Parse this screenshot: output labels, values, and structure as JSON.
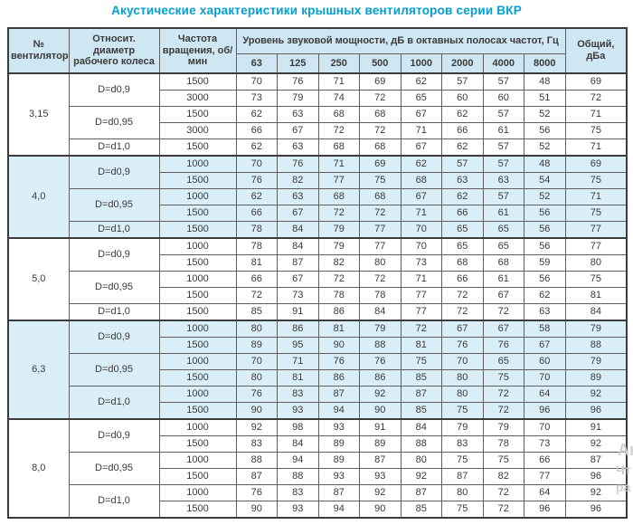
{
  "title": "Акустические характеристики крышных вентиляторов серии ВКР",
  "colors": {
    "title": "#00a0d4",
    "header_bg": "#cfe7f3",
    "highlight_bg": "#daeef8",
    "border_dark": "#3c3c3c",
    "border_inner": "#5f5f5f"
  },
  "watermark": {
    "fragments": [
      "Ак",
      "Чт",
      "ра"
    ]
  },
  "table": {
    "headers": {
      "fan": "№ вентилятора",
      "diameter": "Относит. диаметр рабочего колеса",
      "rpm": "Частота вращения, об/мин",
      "levels_group": "Уровень звуковой мощности, дБ в октавных полосах частот, Гц",
      "frequencies": [
        "63",
        "125",
        "250",
        "500",
        "1000",
        "2000",
        "4000",
        "8000"
      ],
      "total": "Общий, дБа"
    },
    "sections": [
      {
        "fan": "3,15",
        "highlight": false,
        "groups": [
          {
            "diameter": "D=d0,9",
            "rows": [
              {
                "rpm": "1500",
                "levels": [
                  70,
                  76,
                  71,
                  69,
                  62,
                  57,
                  57,
                  48
                ],
                "total": 69
              },
              {
                "rpm": "3000",
                "levels": [
                  73,
                  79,
                  74,
                  72,
                  65,
                  60,
                  60,
                  51
                ],
                "total": 72
              }
            ]
          },
          {
            "diameter": "D=d0,95",
            "rows": [
              {
                "rpm": "1500",
                "levels": [
                  62,
                  63,
                  68,
                  68,
                  67,
                  62,
                  57,
                  52
                ],
                "total": 71
              },
              {
                "rpm": "3000",
                "levels": [
                  66,
                  67,
                  72,
                  72,
                  71,
                  66,
                  61,
                  56
                ],
                "total": 75
              }
            ]
          },
          {
            "diameter": "D=d1,0",
            "rows": [
              {
                "rpm": "1500",
                "levels": [
                  62,
                  63,
                  68,
                  68,
                  67,
                  62,
                  57,
                  52
                ],
                "total": 71
              }
            ]
          }
        ]
      },
      {
        "fan": "4,0",
        "highlight": true,
        "groups": [
          {
            "diameter": "D=d0,9",
            "rows": [
              {
                "rpm": "1000",
                "levels": [
                  70,
                  76,
                  71,
                  69,
                  62,
                  57,
                  57,
                  48
                ],
                "total": 69
              },
              {
                "rpm": "1500",
                "levels": [
                  76,
                  82,
                  77,
                  75,
                  68,
                  63,
                  63,
                  54
                ],
                "total": 75
              }
            ]
          },
          {
            "diameter": "D=d0,95",
            "rows": [
              {
                "rpm": "1000",
                "levels": [
                  62,
                  63,
                  68,
                  68,
                  67,
                  62,
                  57,
                  52
                ],
                "total": 71
              },
              {
                "rpm": "1500",
                "levels": [
                  66,
                  67,
                  72,
                  72,
                  71,
                  66,
                  61,
                  56
                ],
                "total": 75
              }
            ]
          },
          {
            "diameter": "D=d1,0",
            "rows": [
              {
                "rpm": "1500",
                "levels": [
                  78,
                  84,
                  79,
                  77,
                  70,
                  65,
                  65,
                  56
                ],
                "total": 77
              }
            ]
          }
        ]
      },
      {
        "fan": "5,0",
        "highlight": false,
        "groups": [
          {
            "diameter": "D=d0,9",
            "rows": [
              {
                "rpm": "1000",
                "levels": [
                  78,
                  84,
                  79,
                  77,
                  70,
                  65,
                  65,
                  56
                ],
                "total": 77
              },
              {
                "rpm": "1500",
                "levels": [
                  81,
                  87,
                  82,
                  80,
                  73,
                  68,
                  68,
                  59
                ],
                "total": 80
              }
            ]
          },
          {
            "diameter": "D=d0,95",
            "rows": [
              {
                "rpm": "1000",
                "levels": [
                  66,
                  67,
                  72,
                  72,
                  71,
                  66,
                  61,
                  56
                ],
                "total": 75
              },
              {
                "rpm": "1500",
                "levels": [
                  72,
                  73,
                  78,
                  78,
                  77,
                  72,
                  67,
                  62
                ],
                "total": 81
              }
            ]
          },
          {
            "diameter": "D=d1,0",
            "rows": [
              {
                "rpm": "1500",
                "levels": [
                  85,
                  91,
                  86,
                  84,
                  77,
                  72,
                  72,
                  63
                ],
                "total": 84
              }
            ]
          }
        ]
      },
      {
        "fan": "6,3",
        "highlight": true,
        "groups": [
          {
            "diameter": "D=d0,9",
            "rows": [
              {
                "rpm": "1000",
                "levels": [
                  80,
                  86,
                  81,
                  79,
                  72,
                  67,
                  67,
                  58
                ],
                "total": 79
              },
              {
                "rpm": "1500",
                "levels": [
                  89,
                  95,
                  90,
                  88,
                  81,
                  76,
                  76,
                  67
                ],
                "total": 88
              }
            ]
          },
          {
            "diameter": "D=d0,95",
            "rows": [
              {
                "rpm": "1000",
                "levels": [
                  70,
                  71,
                  76,
                  76,
                  75,
                  70,
                  65,
                  60
                ],
                "total": 79
              },
              {
                "rpm": "1500",
                "levels": [
                  80,
                  81,
                  86,
                  86,
                  85,
                  80,
                  75,
                  70
                ],
                "total": 89
              }
            ]
          },
          {
            "diameter": "D=d1,0",
            "rows": [
              {
                "rpm": "1000",
                "levels": [
                  76,
                  83,
                  87,
                  92,
                  87,
                  80,
                  72,
                  64
                ],
                "total": 92
              },
              {
                "rpm": "1500",
                "levels": [
                  90,
                  93,
                  94,
                  90,
                  85,
                  75,
                  72,
                  96
                ],
                "total": 96
              }
            ]
          }
        ]
      },
      {
        "fan": "8,0",
        "highlight": false,
        "groups": [
          {
            "diameter": "D=d0,9",
            "rows": [
              {
                "rpm": "1000",
                "levels": [
                  92,
                  98,
                  93,
                  91,
                  84,
                  79,
                  79,
                  70
                ],
                "total": 91
              },
              {
                "rpm": "1500",
                "levels": [
                  83,
                  84,
                  89,
                  89,
                  88,
                  83,
                  78,
                  73
                ],
                "total": 92
              }
            ]
          },
          {
            "diameter": "D=d0,95",
            "rows": [
              {
                "rpm": "1000",
                "levels": [
                  88,
                  94,
                  89,
                  87,
                  80,
                  75,
                  75,
                  66
                ],
                "total": 87
              },
              {
                "rpm": "1500",
                "levels": [
                  87,
                  88,
                  93,
                  93,
                  92,
                  87,
                  82,
                  77
                ],
                "total": 96
              }
            ]
          },
          {
            "diameter": "D=d1,0",
            "rows": [
              {
                "rpm": "1000",
                "levels": [
                  76,
                  83,
                  87,
                  92,
                  87,
                  80,
                  72,
                  64
                ],
                "total": 92
              },
              {
                "rpm": "1500",
                "levels": [
                  90,
                  93,
                  94,
                  90,
                  85,
                  75,
                  72,
                  96
                ],
                "total": 96
              }
            ]
          }
        ]
      }
    ]
  }
}
